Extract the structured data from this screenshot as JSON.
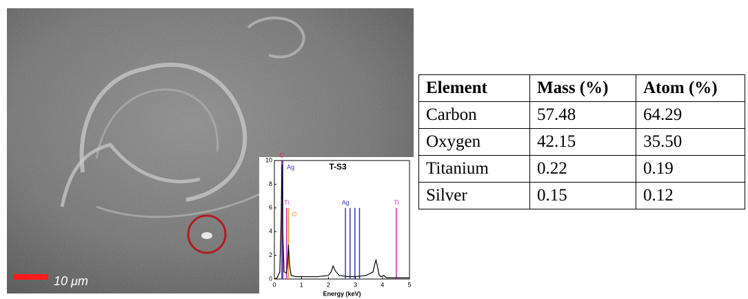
{
  "image": {
    "scale_bar_label": "10 μm"
  },
  "inset_chart": {
    "type": "line",
    "title": "T-S3",
    "x_label": "Energy (keV)",
    "xlim": [
      0,
      5
    ],
    "ylim": [
      0,
      10
    ],
    "xticks": [
      0,
      1,
      2,
      3,
      4,
      5
    ],
    "yticks": [
      0,
      2,
      4,
      6,
      8,
      10
    ],
    "color": "#000000",
    "x": [
      0,
      0.1,
      0.2,
      0.25,
      0.28,
      0.31,
      0.36,
      0.45,
      0.49,
      0.52,
      0.56,
      0.62,
      0.8,
      1.2,
      1.6,
      2.0,
      2.1,
      2.17,
      2.25,
      2.4,
      2.7,
      3.0,
      3.4,
      3.65,
      3.72,
      3.76,
      3.8,
      3.88,
      3.95,
      4.05,
      4.15,
      4.4,
      5.0
    ],
    "values": [
      0,
      0.1,
      0.6,
      5,
      9.6,
      4,
      0.6,
      0.5,
      1.5,
      2.9,
      1.2,
      0.3,
      0.2,
      0.2,
      0.2,
      0.3,
      0.6,
      1.1,
      0.7,
      0.3,
      0.2,
      0.2,
      0.3,
      0.6,
      1.3,
      1.6,
      1.2,
      0.3,
      0.2,
      0.3,
      0.1,
      0.1,
      0.1
    ],
    "markers": [
      {
        "label": "C",
        "energy": 0.27,
        "height": 10,
        "color": "#e0204a"
      },
      {
        "label": "Ag",
        "energy": 0.31,
        "height": 10,
        "color": "#3333cc"
      },
      {
        "label": "Ti",
        "energy": 0.45,
        "height": 6,
        "color": "#e020c8"
      },
      {
        "label": "O",
        "energy": 0.52,
        "height": 6,
        "color": "#f08c28"
      },
      {
        "label": "Ag",
        "energy": 2.63,
        "height": 6,
        "color": "#3333cc"
      },
      {
        "energy": 2.8,
        "height": 6,
        "color": "#3333cc"
      },
      {
        "energy": 2.98,
        "height": 6,
        "color": "#3333cc"
      },
      {
        "energy": 3.15,
        "height": 6,
        "color": "#3333cc"
      },
      {
        "label": "Ti",
        "energy": 4.51,
        "height": 6,
        "color": "#e020c8"
      }
    ]
  },
  "table": {
    "header": [
      "Element",
      "Mass (%)",
      "Atom (%)"
    ],
    "rows": [
      [
        "Carbon",
        "57.48",
        "64.29"
      ],
      [
        "Oxygen",
        "42.15",
        "35.50"
      ],
      [
        "Titanium",
        "0.22",
        "0.19"
      ],
      [
        "Silver",
        "0.15",
        "0.12"
      ]
    ]
  }
}
